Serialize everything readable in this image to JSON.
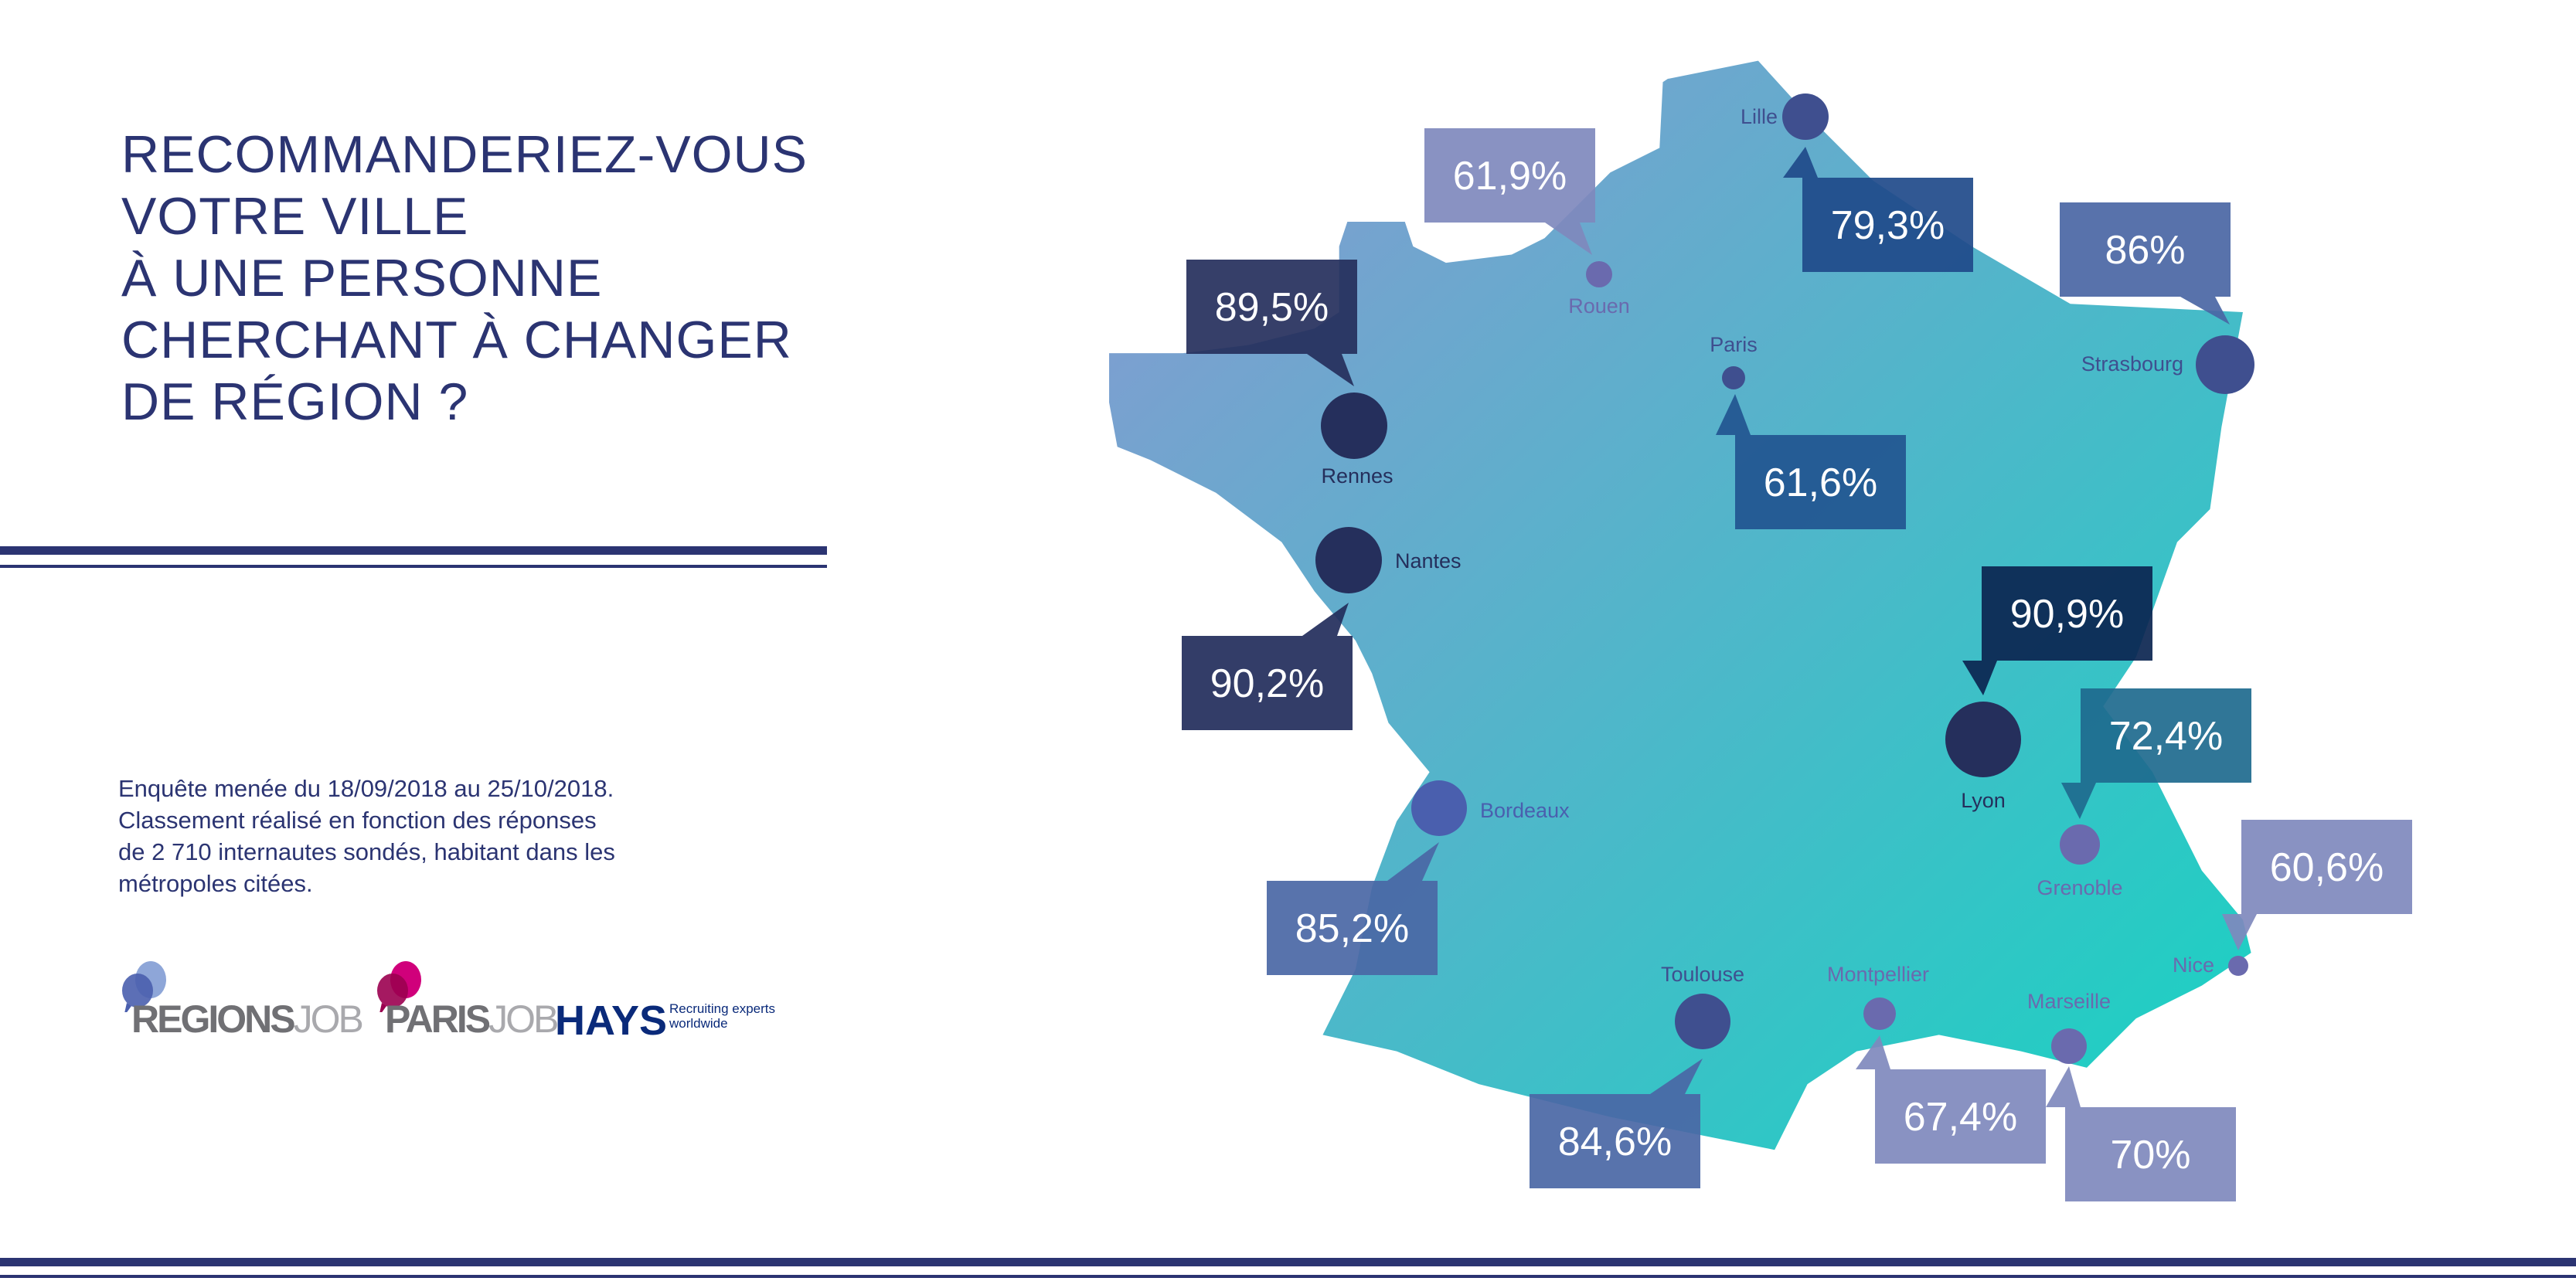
{
  "title": {
    "lines": [
      "RECOMMANDERIEZ-VOUS",
      "VOTRE VILLE",
      "À UNE PERSONNE",
      "CHERCHANT À CHANGER",
      "DE RÉGION ?"
    ]
  },
  "note": {
    "lines": [
      "Enquête menée du 18/09/2018 au 25/10/2018.",
      "Classement réalisé en fonction des réponses",
      "de 2 710 internautes sondés, habitant dans les",
      "métropoles citées."
    ]
  },
  "logos": {
    "regionsjob": {
      "part1": "REGIONS",
      "part2": "JOB"
    },
    "parisjob": {
      "part1": "PARIS",
      "part2": "JOB"
    },
    "hays": {
      "name": "HAYS",
      "tagline1": "Recruiting experts",
      "tagline2": "worldwide"
    }
  },
  "colors": {
    "navy": "#2b3472",
    "map_start": "#8b98d2",
    "map_end": "#17d3c2"
  },
  "chart_data": {
    "type": "map",
    "title": "Recommanderiez-vous votre ville à une personne cherchant à changer de région ?",
    "unit": "%",
    "cities": [
      {
        "name": "Lille",
        "value": "79,3%",
        "color": "#1f4a8a"
      },
      {
        "name": "Rouen",
        "value": "61,9%",
        "color": "#7f89bd"
      },
      {
        "name": "Paris",
        "value": "61,6%",
        "color": "#225590"
      },
      {
        "name": "Strasbourg",
        "value": "86%",
        "color": "#4a66a4"
      },
      {
        "name": "Rennes",
        "value": "89,5%",
        "color": "#252f5c"
      },
      {
        "name": "Nantes",
        "value": "90,2%",
        "color": "#222d5b"
      },
      {
        "name": "Bordeaux",
        "value": "85,2%",
        "color": "#4a67a5"
      },
      {
        "name": "Lyon",
        "value": "90,9%",
        "color": "#0b2550"
      },
      {
        "name": "Grenoble",
        "value": "72,4%",
        "color": "#1e6a8e"
      },
      {
        "name": "Nice",
        "value": "60,6%",
        "color": "#7f89bd"
      },
      {
        "name": "Marseille",
        "value": "70%",
        "color": "#7f89bd"
      },
      {
        "name": "Montpellier",
        "value": "67,4%",
        "color": "#7f89bd"
      },
      {
        "name": "Toulouse",
        "value": "84,6%",
        "color": "#4a67a5"
      }
    ]
  }
}
